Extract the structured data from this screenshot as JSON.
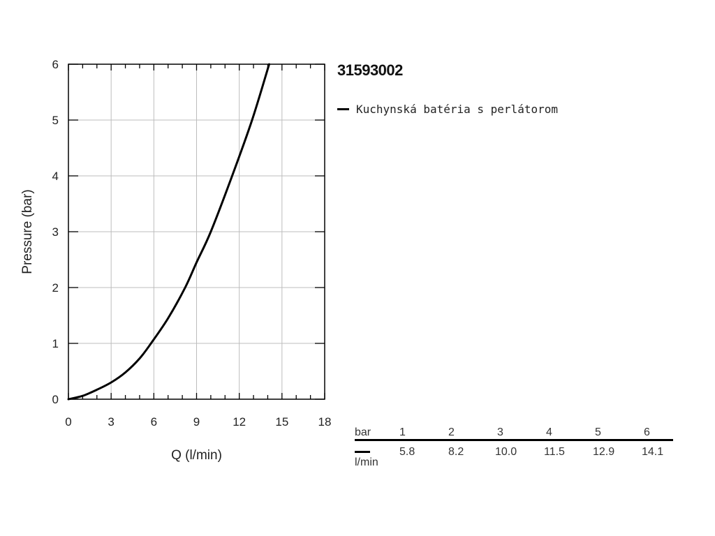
{
  "product_code": "31593002",
  "legend": {
    "swatch_color": "#000000",
    "label": "Kuchynská batéria s perlátorom"
  },
  "chart_data": {
    "type": "line",
    "title": "",
    "xlabel": "Q (l/min)",
    "ylabel": "Pressure (bar)",
    "xlim": [
      0,
      18
    ],
    "ylim": [
      0,
      6
    ],
    "x_ticks": [
      0,
      3,
      6,
      9,
      12,
      15,
      18
    ],
    "y_ticks": [
      0,
      1,
      2,
      3,
      4,
      5,
      6
    ],
    "grid": true,
    "legend_position": "top-right",
    "series": [
      {
        "name": "Kuchynská batéria s perlátorom",
        "color": "#000000",
        "x": [
          0,
          1,
          2,
          3,
          4,
          5,
          5.8,
          7,
          8.2,
          9,
          10.0,
          11.5,
          12.9,
          14.1
        ],
        "y": [
          0,
          0.06,
          0.17,
          0.3,
          0.48,
          0.73,
          1,
          1.45,
          2,
          2.45,
          3,
          4,
          5,
          6
        ]
      }
    ]
  },
  "table": {
    "row1_label": "bar",
    "row2_label": "l/min",
    "pressure": [
      "1",
      "2",
      "3",
      "4",
      "5",
      "6"
    ],
    "flow": [
      "5.8",
      "8.2",
      "10.0",
      "11.5",
      "12.9",
      "14.1"
    ]
  }
}
